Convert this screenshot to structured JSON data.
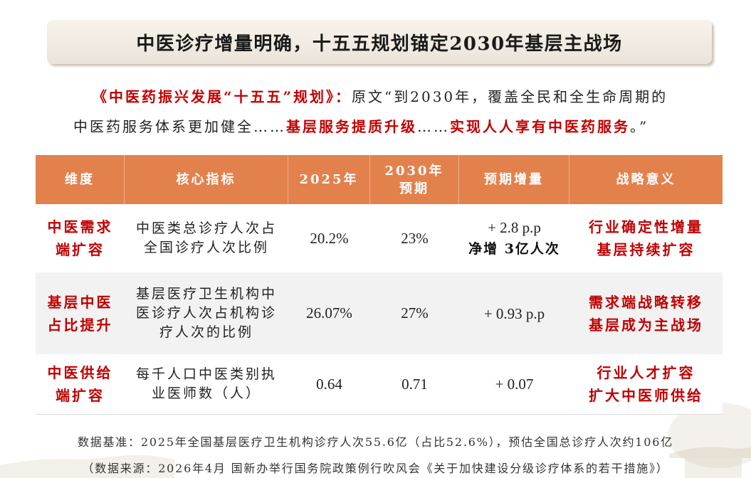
{
  "title": "中医诊疗增量明确，十五五规划锚定2030年基层主战场",
  "quote": {
    "lines": [
      [
        "《中医药振兴发展“十五五”规划》：",
        "原文“到2030年，覆盖全民和全生命周期的"
      ],
      [
        "中医药服务体系更加健全……",
        "基层服务提质升级",
        "……",
        "实现人人享有中医药服务",
        "。”"
      ]
    ]
  },
  "table": {
    "headers": {
      "dimension": "维度",
      "indicator": "核心指标",
      "y2025": "2025年",
      "y2030": [
        "2030年",
        "预期"
      ],
      "increment": "预期增量",
      "significance": "战略意义"
    },
    "rows": [
      {
        "dimension": [
          "中医需求",
          "端扩容"
        ],
        "indicator": [
          "中医类总诊疗人次占",
          "全国诊疗人次比例"
        ],
        "y2025": "20.2%",
        "y2030": "23%",
        "increment": [
          "+ 2.8 p.p",
          "净增 3亿人次"
        ],
        "significance": [
          "行业确定性增量",
          "基层持续扩容"
        ]
      },
      {
        "dimension": [
          "基层中医",
          "占比提升"
        ],
        "indicator": [
          "基层医疗卫生机构中",
          "医诊疗人次占机构诊",
          "疗人次的比例"
        ],
        "y2025": "26.07%",
        "y2030": "27%",
        "increment": [
          "+ 0.93 p.p"
        ],
        "significance": [
          "需求端战略转移",
          "基层成为主战场"
        ]
      },
      {
        "dimension": [
          "中医供给",
          "端扩容"
        ],
        "indicator": [
          "每千人口中医类别执",
          "业医师数（人）"
        ],
        "y2025": "0.64",
        "y2030": "0.71",
        "increment": [
          "+ 0.07"
        ],
        "significance": [
          "行业人才扩容",
          "扩大中医师供给"
        ]
      }
    ]
  },
  "footnotes": {
    "basis": "数据基准：2025年全国基层医疗卫生机构诊疗人次55.6亿（占比52.6%），预估全国总诊疗人次约106亿",
    "source": "（数据来源：2026年4月 国新办举行国务院政策例行吹风会《关于加快建设分级诊疗体系的若干措施》）"
  },
  "colors": {
    "accent_red": "#C00000",
    "header_orange": "#E3814D",
    "row_alt_bg": "#F2F2F2",
    "banner_bg": "#F2EBE0",
    "text": "#1F1F1F"
  }
}
